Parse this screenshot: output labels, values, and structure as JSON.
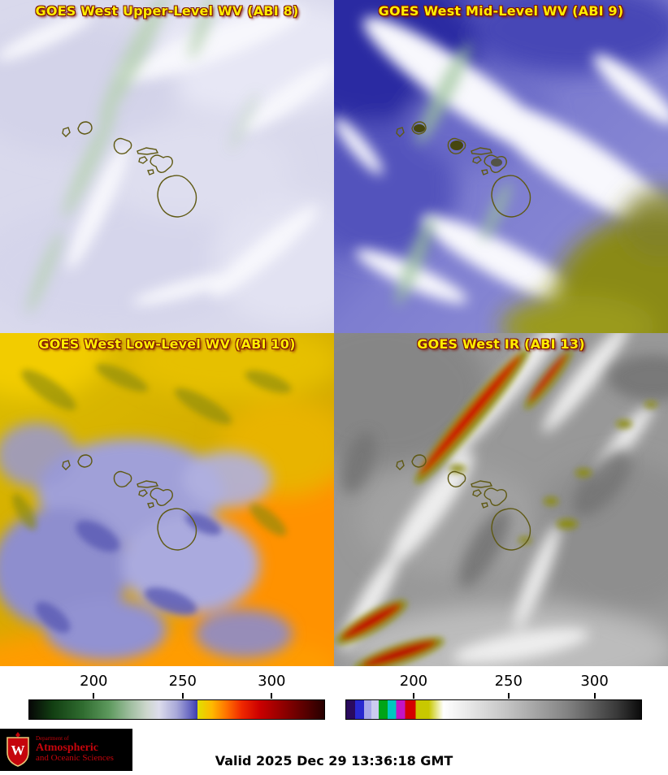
{
  "panels": [
    {
      "id": "upper-wv",
      "title": "GOES West Upper-Level WV (ABI 8)"
    },
    {
      "id": "mid-wv",
      "title": "GOES West Mid-Level WV (ABI 9)"
    },
    {
      "id": "low-wv",
      "title": "GOES West Low-Level WV (ABI 10)"
    },
    {
      "id": "ir",
      "title": "GOES West IR (ABI 13)"
    }
  ],
  "colorbars": [
    {
      "name": "water-vapor-temperature-scale",
      "ticks": [
        "200",
        "250",
        "300"
      ],
      "tick_positions": [
        22,
        52,
        82
      ],
      "stops": [
        [
          0,
          "#060606"
        ],
        [
          8,
          "#123f12"
        ],
        [
          18,
          "#2f6b2f"
        ],
        [
          27,
          "#5d995d"
        ],
        [
          34,
          "#9dbd9d"
        ],
        [
          40,
          "#ced7ce"
        ],
        [
          44,
          "#dcdcec"
        ],
        [
          50,
          "#a8a8d8"
        ],
        [
          55,
          "#6060c0"
        ],
        [
          57,
          "#3c3cb0"
        ],
        [
          57.01,
          "#e0e000"
        ],
        [
          62,
          "#ffb800"
        ],
        [
          67,
          "#ff7000"
        ],
        [
          72,
          "#f02800"
        ],
        [
          78,
          "#cc0000"
        ],
        [
          85,
          "#980000"
        ],
        [
          93,
          "#5c0000"
        ],
        [
          100,
          "#260000"
        ]
      ]
    },
    {
      "name": "ir-temperature-scale",
      "ticks": [
        "200",
        "250",
        "300"
      ],
      "tick_positions": [
        23,
        55,
        84
      ],
      "stops": [
        [
          0,
          "#2a0a5e"
        ],
        [
          3,
          "#2a0a5e"
        ],
        [
          3,
          "#2828d0"
        ],
        [
          6,
          "#2828d0"
        ],
        [
          6,
          "#a8a8e8"
        ],
        [
          8.5,
          "#a8a8e8"
        ],
        [
          8.5,
          "#ccccf0"
        ],
        [
          11,
          "#ccccf0"
        ],
        [
          11,
          "#00a418"
        ],
        [
          14,
          "#00a418"
        ],
        [
          14,
          "#00c8c0"
        ],
        [
          17,
          "#00c8c0"
        ],
        [
          17,
          "#c414c4"
        ],
        [
          20,
          "#c414c4"
        ],
        [
          20,
          "#d40000"
        ],
        [
          23.5,
          "#d40000"
        ],
        [
          23.5,
          "#c8c800"
        ],
        [
          28,
          "#c8c800"
        ],
        [
          33,
          "#ffffff"
        ],
        [
          55,
          "#c2c2c2"
        ],
        [
          75,
          "#828282"
        ],
        [
          92,
          "#383838"
        ],
        [
          100,
          "#0a0a0a"
        ]
      ]
    }
  ],
  "footer": {
    "logo": {
      "line1": "Department of",
      "line2": "Atmospheric",
      "line3": "and Oceanic Sciences",
      "crest_letter": "W"
    },
    "valid": "Valid 2025 Dec 29 13:36:18 GMT"
  },
  "colors": {
    "panel_title": "#ffee00",
    "panel_title_shadow": "#7c1206",
    "uw_red": "#c5050c",
    "island_outline": "#5f5913"
  }
}
